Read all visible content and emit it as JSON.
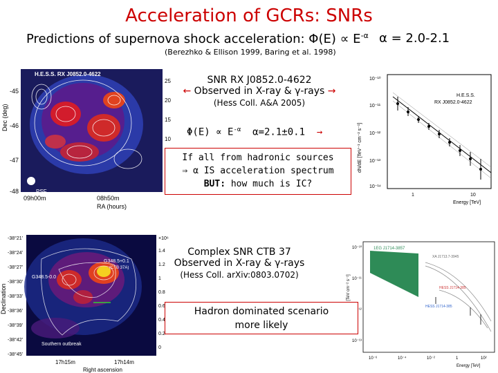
{
  "slide": {
    "title": "Acceleration of GCRs: SNRs",
    "subtitle": "Predictions of supernova shock acceleration: Φ(E) ∝ E",
    "subtitle_exp": "-α",
    "alpha_range": "α = 2.0-2.1",
    "refs": "(Berezhko & Ellison 1999, Baring et al. 1998)"
  },
  "block1": {
    "name": "SNR RX J0852.0-4622",
    "arrow_left": "←",
    "observed": "Observed in X-ray & γ-rays",
    "arrow_right": "→",
    "ref": "(Hess Coll. A&A 2005)",
    "fit_left": "Φ(E) ∝ E",
    "fit_exp": "-α",
    "fit_right": "α=2.1±0.1",
    "fit_arrow": "→",
    "box_line1": "If all from hadronic sources",
    "box_line2_arrow": "⇒",
    "box_line2": "α IS acceleration spectrum",
    "box_line3_bold": "BUT:",
    "box_line3": "how much is IC?"
  },
  "block2": {
    "name": "Complex SNR CTB 37",
    "observed": "Observed in X-ray & γ-rays",
    "ref": "(Hess Coll. arXiv:0803.0702)",
    "box_line1": "Hadron dominated scenario",
    "box_line2": "more likely"
  },
  "map1": {
    "ylabel": "Dec (deg)",
    "xlabel": "RA (hours)",
    "header": "H.E.S.S.  RX J0852.0-4622",
    "yticks": [
      "-45",
      "-46",
      "-47",
      "-48"
    ],
    "xticks": [
      "09h00m",
      "08h50m"
    ],
    "cticks": [
      "25",
      "20",
      "15",
      "10",
      "5",
      "0"
    ],
    "psf": "PSF"
  },
  "spec1": {
    "ylabel": "dN/dE [TeV⁻¹ cm⁻² s⁻¹]",
    "xlabel": "Energy [TeV]",
    "legend1": "H.E.S.S.",
    "legend2": "RX J0852.0-4622",
    "yticks": [
      "10⁻¹⁰",
      "10⁻¹¹",
      "10⁻¹²",
      "10⁻¹³",
      "10⁻¹⁴"
    ],
    "xticks": [
      "1",
      "10"
    ]
  },
  "map2": {
    "ylabel": "Declination",
    "xlabel": "Right ascension",
    "yticks": [
      "-38°21'",
      "-38°24'",
      "-38°27'",
      "-38°30'",
      "-38°33'",
      "-38°36'",
      "-38°39'",
      "-38°42'",
      "-38°45'"
    ],
    "xticks": [
      "17h15m",
      "17h14m"
    ],
    "cticks": [
      "×10⁶",
      "1.4",
      "1.2",
      "1",
      "0.8",
      "0.6",
      "0.4",
      "0.2",
      "0"
    ],
    "label_a": "G348.5-0.0",
    "label_b": "G348.5+0.1",
    "label_b2": "(CTB 37A)",
    "label_c": "Southern outbreak"
  },
  "spec2": {
    "ylabel": "E²F(E) [TeV cm⁻² s⁻¹]",
    "xlabel": "Energy [TeV]",
    "label_a": "1EG J1714-3857",
    "label_b": "XA J1713.7-3945",
    "label_c": "HESS J1714-385",
    "label_d": "HESS J1714-385",
    "yticks": [
      "10⁻¹⁰",
      "10⁻¹¹",
      "10⁻¹²",
      "10⁻¹³"
    ],
    "xticks": [
      "10⁻⁶",
      "10⁻⁴",
      "10⁻²",
      "1",
      "10²"
    ]
  },
  "colors": {
    "title": "#cc0000",
    "box_border": "#cc0000",
    "arrow": "#cc0000"
  }
}
